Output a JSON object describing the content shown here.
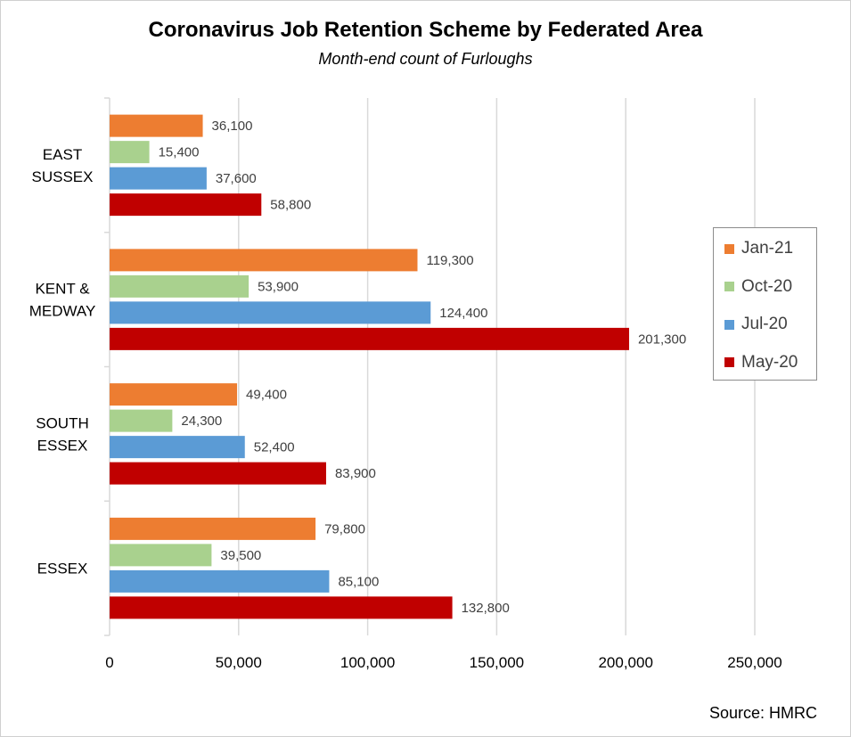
{
  "chart_data": {
    "type": "bar",
    "orientation": "horizontal",
    "title": "Coronavirus Job Retention Scheme by Federated Area",
    "subtitle": "Month-end count of Furloughs",
    "categories": [
      [
        "EAST",
        "SUSSEX"
      ],
      [
        "KENT &",
        "MEDWAY"
      ],
      [
        "SOUTH",
        "ESSEX"
      ],
      [
        "ESSEX"
      ]
    ],
    "series": [
      {
        "name": "Jan-21",
        "color": "#ED7D31",
        "values": [
          36100,
          119300,
          49400,
          79800
        ],
        "labels": [
          "36,100",
          "119,300",
          "49,400",
          "79,800"
        ]
      },
      {
        "name": "Oct-20",
        "color": "#A9D18E",
        "values": [
          15400,
          53900,
          24300,
          39500
        ],
        "labels": [
          "15,400",
          "53,900",
          "24,300",
          "39,500"
        ]
      },
      {
        "name": "Jul-20",
        "color": "#5B9BD5",
        "values": [
          37600,
          124400,
          52400,
          85100
        ],
        "labels": [
          "37,600",
          "124,400",
          "52,400",
          "85,100"
        ]
      },
      {
        "name": "May-20",
        "color": "#C00000",
        "values": [
          58800,
          201300,
          83900,
          132800
        ],
        "labels": [
          "58,800",
          "201,300",
          "83,900",
          "132,800"
        ]
      }
    ],
    "xlim": [
      0,
      250000
    ],
    "xticks": [
      0,
      50000,
      100000,
      150000,
      200000,
      250000
    ],
    "xtick_labels": [
      "0",
      "50,000",
      "100,000",
      "150,000",
      "200,000",
      "250,000"
    ],
    "grid": true,
    "legend_position": "right"
  },
  "source": "Source: HMRC"
}
